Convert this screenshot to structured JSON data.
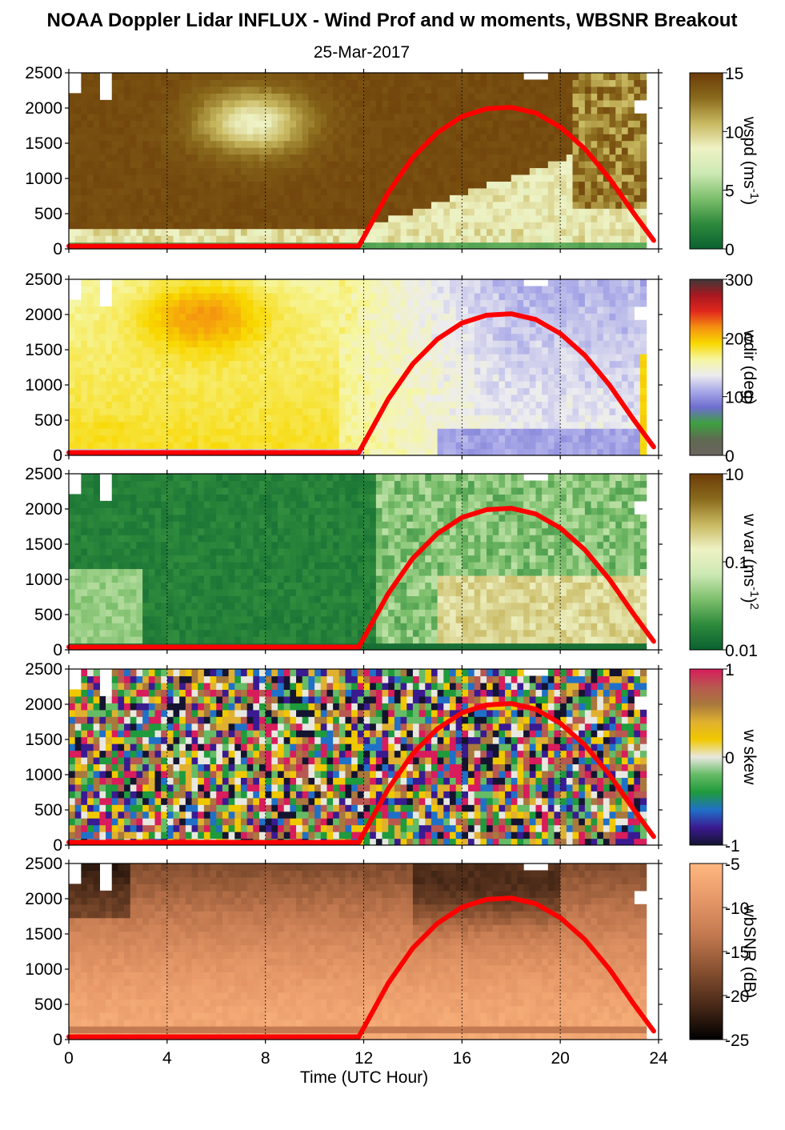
{
  "chart_data": {
    "type": "heatmap",
    "title": "NOAA Doppler Lidar INFLUX - Wind Prof and w moments, WBSNR Breakout",
    "subtitle": "25-Mar-2017",
    "xlabel": "Time (UTC Hour)",
    "xlim": [
      0,
      24
    ],
    "x_ticks": [
      "0",
      "4",
      "8",
      "12",
      "16",
      "20",
      "24"
    ],
    "ylim": [
      0,
      2500
    ],
    "y_ticks": [
      "0",
      "500",
      "1000",
      "1500",
      "2000",
      "2500"
    ],
    "grid": "dotted vertical lines every 4 hours",
    "overlay": {
      "color": "#ff0000",
      "description": "red sun-elevation curve",
      "points": [
        [
          0,
          40
        ],
        [
          11.8,
          40
        ],
        [
          13,
          800
        ],
        [
          14,
          1300
        ],
        [
          15,
          1650
        ],
        [
          16,
          1880
        ],
        [
          17,
          1990
        ],
        [
          18,
          2010
        ],
        [
          19,
          1930
        ],
        [
          20,
          1730
        ],
        [
          21,
          1420
        ],
        [
          22,
          1000
        ],
        [
          23,
          500
        ],
        [
          23.8,
          120
        ]
      ]
    },
    "panels": [
      {
        "colorbar_label": "wspd (ms",
        "colorbar_label_sup": "-1",
        "colorbar_label_end": ")",
        "colorbar_ticks": [
          "15",
          "10",
          "5",
          "0"
        ],
        "colorbar_colors": [
          "#6b3b08",
          "#8a6a1c",
          "#c8b860",
          "#eef2c4",
          "#cde9b4",
          "#7cbf6c",
          "#2e8a3c",
          "#0a6130"
        ]
      },
      {
        "colorbar_label": "wdir (deg)",
        "colorbar_label_sup": "",
        "colorbar_label_end": "",
        "colorbar_ticks": [
          "300",
          "200",
          "100",
          "0"
        ],
        "colorbar_colors": [
          "#403838",
          "#a81820",
          "#e0281c",
          "#f59010",
          "#f8d800",
          "#f6f6a0",
          "#ececf0",
          "#a8a8e8",
          "#6e6ed0",
          "#3ea040",
          "#5e6a50",
          "#6a6460"
        ]
      },
      {
        "colorbar_label": "w var (ms",
        "colorbar_label_sup": "-1",
        "colorbar_label_end": ")",
        "colorbar_label_sup2": "2",
        "colorbar_ticks": [
          "10",
          "0.1",
          "0.01"
        ],
        "colorbar_colors": [
          "#6b3b08",
          "#8a6a1c",
          "#c8b860",
          "#eef2c4",
          "#cde9b4",
          "#7cbf6c",
          "#2e8a3c",
          "#0a6130"
        ]
      },
      {
        "colorbar_label": "w skew",
        "colorbar_label_sup": "",
        "colorbar_label_end": "",
        "colorbar_ticks": [
          "1",
          "0",
          "-1"
        ],
        "colorbar_colors": [
          "#d81c5c",
          "#b85850",
          "#a8783c",
          "#e0b030",
          "#f0c800",
          "#e8e8e0",
          "#66bb66",
          "#1f9a3c",
          "#2070c8",
          "#3a1a90",
          "#141430"
        ]
      },
      {
        "colorbar_label": "wbSNR (dB)",
        "colorbar_label_sup": "",
        "colorbar_label_end": "",
        "colorbar_ticks": [
          "-5",
          "-10",
          "-15",
          "-20",
          "-25"
        ],
        "colorbar_colors": [
          "#ffb880",
          "#e69868",
          "#c47a50",
          "#8a5232",
          "#4a2a18",
          "#000000"
        ]
      }
    ]
  }
}
